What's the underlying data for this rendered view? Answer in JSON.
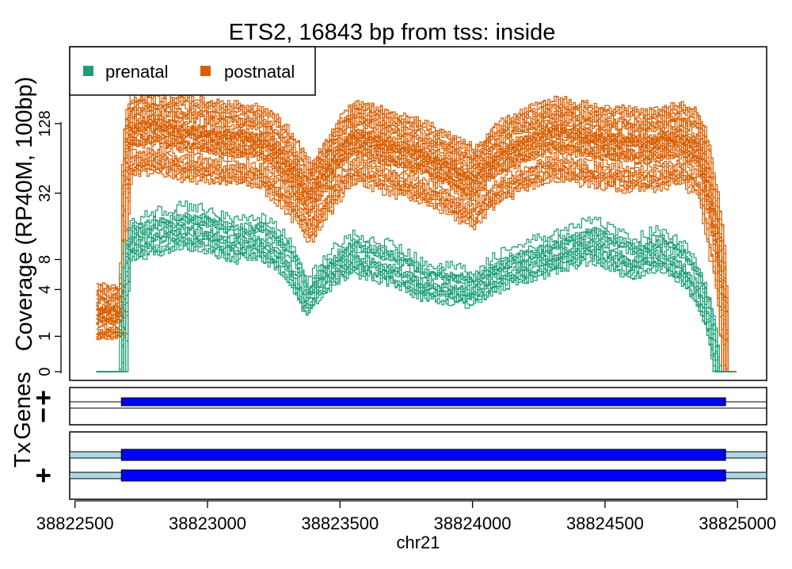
{
  "chart_data": {
    "type": "line",
    "title": "ETS2, 16843 bp from tss: inside",
    "ylabel": "Coverage (RP40M, 100bp)",
    "xlabel": "chr21",
    "x_scale": "linear",
    "y_scale": "log2(1+y)",
    "xlim": [
      38822480,
      38825110
    ],
    "x_ticks": [
      38822500,
      38823000,
      38823500,
      38824000,
      38824500,
      38825000
    ],
    "x_tick_labels": [
      "38822500",
      "38823000",
      "38823500",
      "38824000",
      "38824500",
      "38825000"
    ],
    "y_ticks": [
      0,
      1,
      4,
      8,
      32,
      128
    ],
    "y_tick_labels": [
      "0",
      "1",
      "4",
      "8",
      "32",
      "128"
    ],
    "grid": false,
    "legend": {
      "position": "top-left",
      "entries": [
        {
          "label": "prenatal",
          "color": "#1b9e77"
        },
        {
          "label": "postnatal",
          "color": "#d95f02"
        }
      ]
    },
    "series": [
      {
        "name": "prenatal",
        "color": "#1b9e77",
        "approx_line_count": 15,
        "x": [
          38822580,
          38822680,
          38822700,
          38822800,
          38822900,
          38823000,
          38823100,
          38823200,
          38823300,
          38823370,
          38823450,
          38823550,
          38823700,
          38823800,
          38824000,
          38824100,
          38824300,
          38824450,
          38824600,
          38824700,
          38824800,
          38824870,
          38824920,
          38824980
        ],
        "y": [
          0,
          0,
          12,
          14,
          16,
          15,
          12,
          13,
          8,
          3,
          6,
          9,
          7,
          5,
          4,
          6,
          9,
          12,
          8,
          10,
          7,
          3,
          0,
          0
        ]
      },
      {
        "name": "postnatal",
        "color": "#d95f02",
        "approx_line_count": 40,
        "x": [
          38822580,
          38822680,
          38822700,
          38822800,
          38822900,
          38823000,
          38823100,
          38823200,
          38823300,
          38823380,
          38823450,
          38823550,
          38823700,
          38823800,
          38824000,
          38824100,
          38824300,
          38824500,
          38824650,
          38824780,
          38824850,
          38824900,
          38824950,
          38825000
        ],
        "y": [
          2,
          2,
          100,
          110,
          95,
          90,
          85,
          80,
          50,
          25,
          45,
          90,
          70,
          60,
          35,
          60,
          95,
          80,
          75,
          85,
          70,
          20,
          0,
          0
        ]
      }
    ],
    "panels": [
      {
        "label": "Genes",
        "strand_labels": [
          "+",
          "−"
        ]
      },
      {
        "label": "Tx",
        "strand_labels": [
          "+"
        ]
      }
    ],
    "gene_model": {
      "start": 38822675,
      "end": 38824955
    },
    "transcripts": [
      {
        "start": 38822675,
        "end": 38824955
      },
      {
        "start": 38822675,
        "end": 38824955
      }
    ]
  }
}
